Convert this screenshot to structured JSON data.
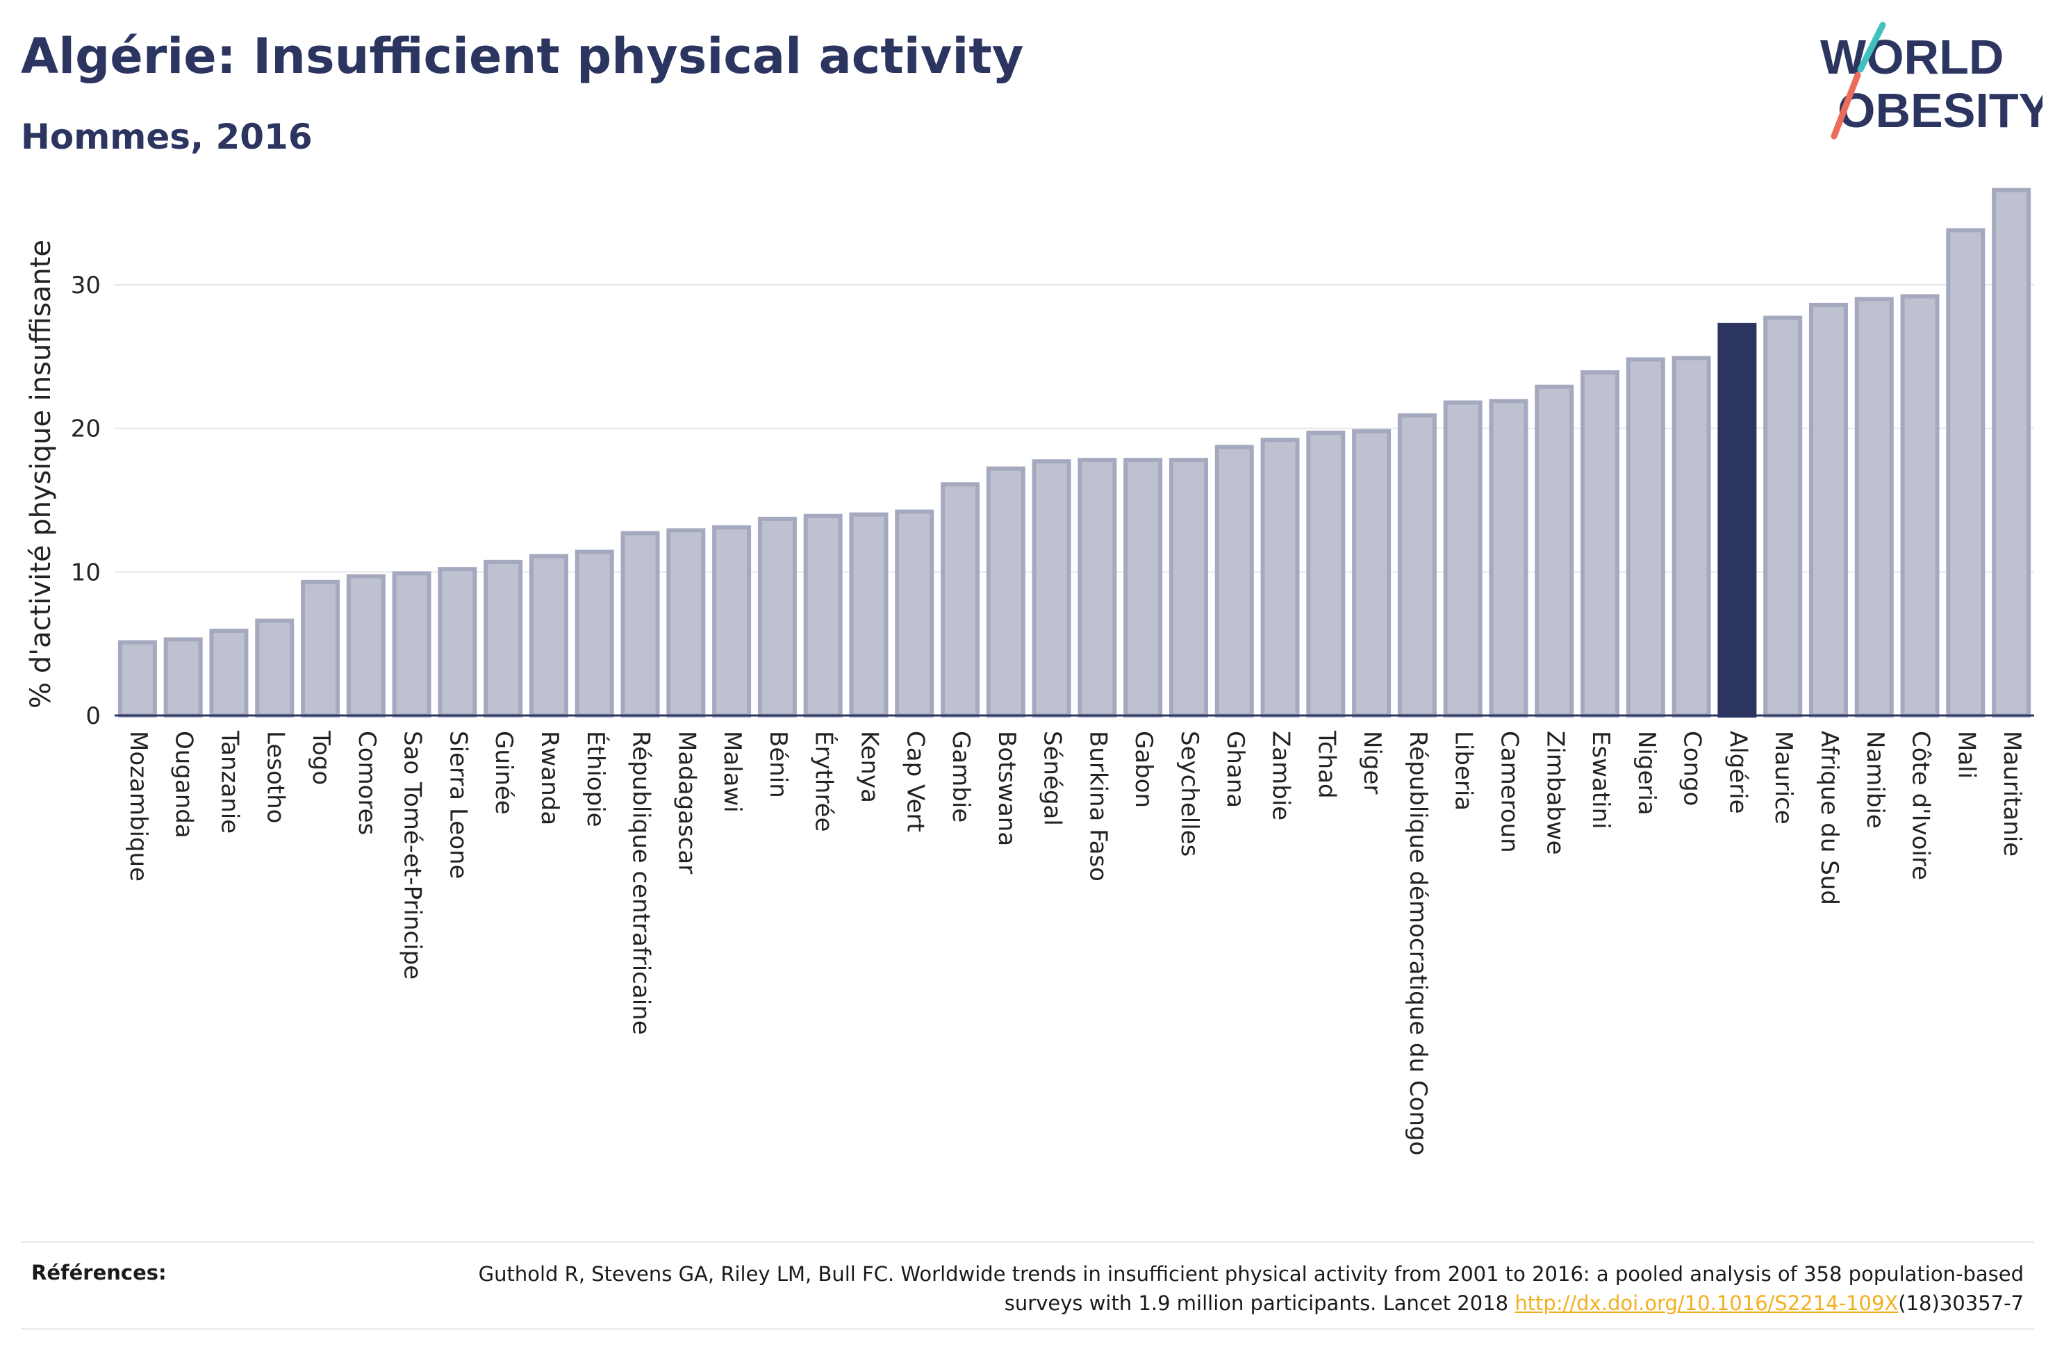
{
  "header": {
    "title": "Algérie: Insufficient physical activity",
    "subtitle": "Hommes, 2016"
  },
  "logo": {
    "line1": "WORLD",
    "line2": "OBESITY"
  },
  "colors": {
    "bar_default": "#bec1cf",
    "bar_default_stroke": "#a5a9bf",
    "bar_highlight": "#2b3560",
    "text": "#2b3560",
    "link": "#f2b01e",
    "logo_teal": "#3fc1c0",
    "logo_coral": "#ec6b5b"
  },
  "chart_data": {
    "type": "bar",
    "title": "Algérie: Insufficient physical activity",
    "subtitle": "Hommes, 2016",
    "xlabel": "",
    "ylabel": "% d'activité physique insuffisante",
    "ylim": [
      0,
      37.5
    ],
    "yticks": [
      0,
      10,
      20,
      30
    ],
    "grid": true,
    "highlight": "Algérie",
    "categories": [
      "Mozambique",
      "Ouganda",
      "Tanzanie",
      "Lesotho",
      "Togo",
      "Comores",
      "Sao Tomé-et-Principe",
      "Sierra Leone",
      "Guinée",
      "Rwanda",
      "Éthiopie",
      "République centrafricaine",
      "Madagascar",
      "Malawi",
      "Bénin",
      "Érythrée",
      "Kenya",
      "Cap Vert",
      "Gambie",
      "Botswana",
      "Sénégal",
      "Burkina Faso",
      "Gabon",
      "Seychelles",
      "Ghana",
      "Zambie",
      "Tchad",
      "Niger",
      "République démocratique du Congo",
      "Liberia",
      "Cameroun",
      "Zimbabwe",
      "Eswatini",
      "Nigeria",
      "Congo",
      "Algérie",
      "Maurice",
      "Afrique du Sud",
      "Namibie",
      "Côte d'Ivoire",
      "Mali",
      "Mauritanie"
    ],
    "values": [
      5.1,
      5.3,
      5.9,
      6.6,
      9.3,
      9.7,
      9.9,
      10.2,
      10.7,
      11.1,
      11.4,
      12.7,
      12.9,
      13.1,
      13.7,
      13.9,
      14.0,
      14.2,
      16.1,
      17.2,
      17.7,
      17.8,
      17.8,
      17.8,
      18.7,
      19.2,
      19.7,
      19.8,
      20.9,
      21.8,
      21.9,
      22.9,
      23.9,
      24.8,
      24.9,
      27.2,
      27.7,
      28.6,
      29.0,
      29.2,
      33.8,
      36.6
    ]
  },
  "references": {
    "label": "Références:",
    "text_before_link": "Guthold R, Stevens GA, Riley LM, Bull FC. Worldwide trends in insufficient physical activity from 2001 to 2016: a pooled analysis of 358 population-based surveys with 1.9 million participants. Lancet 2018 ",
    "link_text": "http://dx.doi.org/10.1016/S2214-109X",
    "text_after_link": "(18)30357-7"
  }
}
